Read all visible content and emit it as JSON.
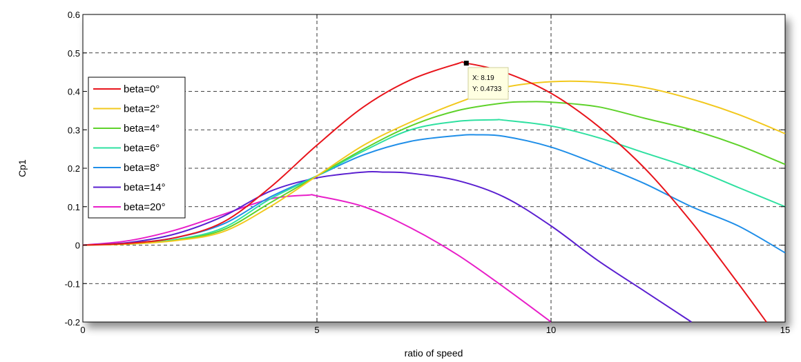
{
  "chart_data": {
    "type": "line",
    "xlabel": "ratio of speed",
    "ylabel": "Cp1",
    "xlim": [
      0,
      15
    ],
    "ylim": [
      -0.2,
      0.6
    ],
    "x_ticks": [
      "0",
      "5",
      "10",
      "15"
    ],
    "y_ticks": [
      "-0.2",
      "-0.1",
      "0",
      "0.1",
      "0.2",
      "0.3",
      "0.4",
      "0.5",
      "0.6"
    ],
    "grid": true,
    "legend_position": "left",
    "series": [
      {
        "name": "beta=0°",
        "color": "#e8141b",
        "x": [
          0,
          1,
          2,
          3,
          4,
          5,
          6,
          7,
          8,
          8.19,
          9,
          10,
          11,
          12,
          13,
          14,
          14.6
        ],
        "y": [
          0,
          0.005,
          0.02,
          0.06,
          0.15,
          0.26,
          0.36,
          0.43,
          0.472,
          0.4733,
          0.45,
          0.395,
          0.31,
          0.2,
          0.06,
          -0.1,
          -0.2
        ]
      },
      {
        "name": "beta=2°",
        "color": "#f2c81d",
        "x": [
          0,
          1,
          2,
          3,
          4,
          5,
          6,
          7,
          8,
          9,
          10,
          11,
          12,
          13,
          14,
          15
        ],
        "y": [
          0,
          0.003,
          0.012,
          0.035,
          0.1,
          0.18,
          0.26,
          0.32,
          0.37,
          0.41,
          0.425,
          0.424,
          0.41,
          0.38,
          0.34,
          0.29
        ]
      },
      {
        "name": "beta=4°",
        "color": "#5ed22a",
        "x": [
          0,
          1,
          2,
          3,
          4,
          5,
          6,
          7,
          8,
          9,
          9.5,
          10,
          11,
          12,
          13,
          14,
          15
        ],
        "y": [
          0,
          0.003,
          0.013,
          0.04,
          0.11,
          0.18,
          0.25,
          0.31,
          0.35,
          0.37,
          0.373,
          0.372,
          0.36,
          0.33,
          0.3,
          0.26,
          0.21
        ]
      },
      {
        "name": "beta=6°",
        "color": "#2ee0a0",
        "x": [
          0,
          1,
          2,
          3,
          4,
          5,
          6,
          7,
          8,
          8.8,
          9,
          10,
          11,
          12,
          13,
          14,
          15
        ],
        "y": [
          0,
          0.004,
          0.015,
          0.045,
          0.12,
          0.18,
          0.245,
          0.3,
          0.322,
          0.326,
          0.325,
          0.31,
          0.28,
          0.24,
          0.2,
          0.15,
          0.1
        ]
      },
      {
        "name": "beta=8°",
        "color": "#1f8ee8",
        "x": [
          0,
          1,
          2,
          3,
          4,
          5,
          6,
          7,
          8,
          8.4,
          9,
          10,
          11,
          12,
          13,
          14,
          15
        ],
        "y": [
          0,
          0.005,
          0.02,
          0.055,
          0.125,
          0.18,
          0.235,
          0.27,
          0.285,
          0.287,
          0.283,
          0.255,
          0.21,
          0.16,
          0.1,
          0.05,
          -0.02
        ]
      },
      {
        "name": "beta=14°",
        "color": "#5a1fd0",
        "x": [
          0,
          1,
          2,
          3,
          4,
          5,
          6,
          6.4,
          7,
          8,
          9,
          10,
          11,
          12,
          13
        ],
        "y": [
          0,
          0.007,
          0.03,
          0.075,
          0.14,
          0.175,
          0.19,
          0.19,
          0.187,
          0.168,
          0.125,
          0.05,
          -0.04,
          -0.12,
          -0.2
        ]
      },
      {
        "name": "beta=20°",
        "color": "#e81ec8",
        "x": [
          0,
          1,
          2,
          3,
          4,
          4.8,
          5,
          6,
          7,
          8,
          9,
          10
        ],
        "y": [
          0,
          0.012,
          0.04,
          0.08,
          0.12,
          0.13,
          0.128,
          0.1,
          0.045,
          -0.025,
          -0.11,
          -0.2
        ]
      }
    ],
    "annotation": {
      "x": 8.19,
      "y": 0.4733,
      "line1": "X: 8.19",
      "line2": "Y: 0.4733"
    }
  }
}
